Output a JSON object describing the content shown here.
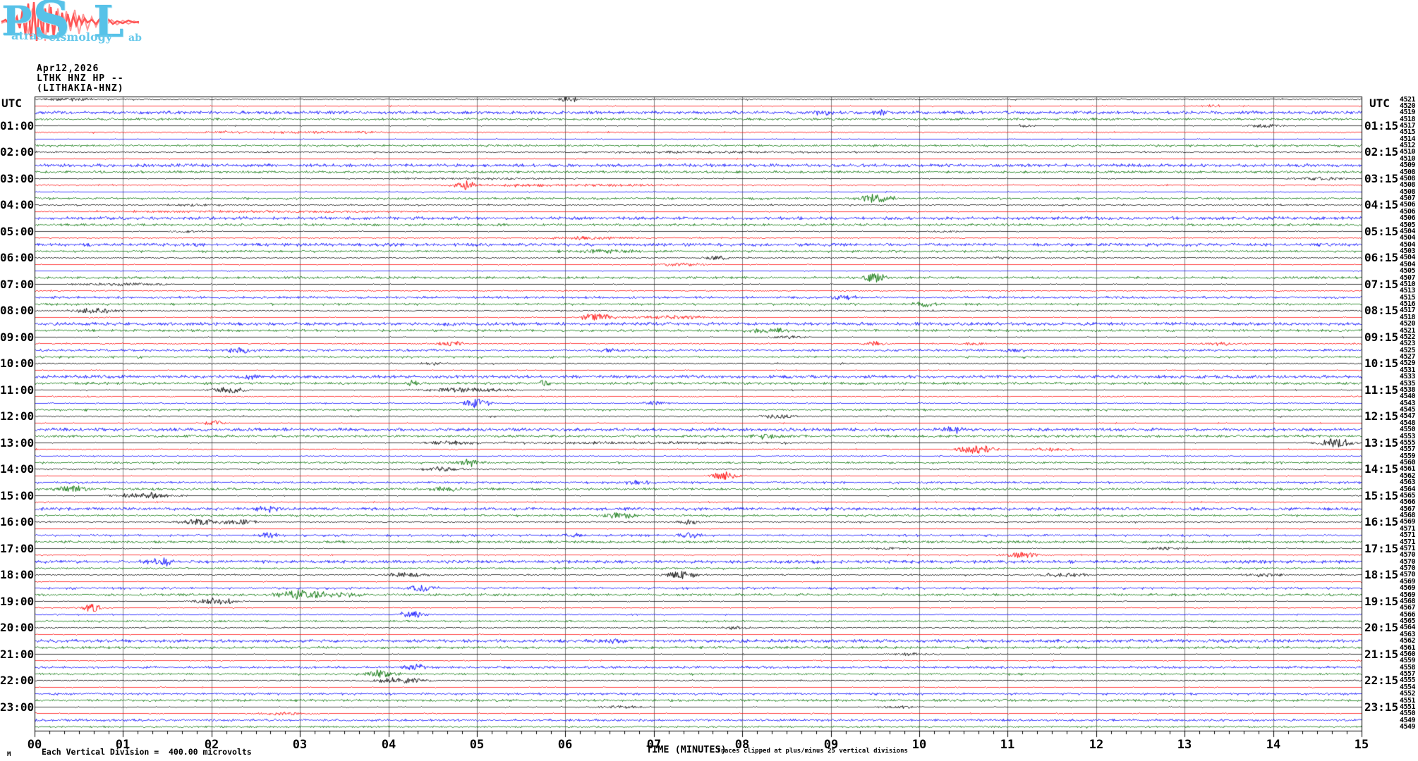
{
  "logo": {
    "p": "P",
    "s": "S",
    "l": "L",
    "word1": "atras",
    "word2": "eismology",
    "word3": "ab",
    "letter_color": "#57c2e8",
    "wave_color": "#ff5555"
  },
  "header": {
    "date": "Apr12,2026",
    "station": "LTHK HNZ HP --",
    "station_name": "(LITHAKIA-HNZ)"
  },
  "axis": {
    "utc_left": "UTC",
    "utc_right": "UTC",
    "x_tick_labels": [
      "00",
      "01",
      "02",
      "03",
      "04",
      "05",
      "06",
      "07",
      "08",
      "09",
      "10",
      "11",
      "12",
      "13",
      "14",
      "15"
    ]
  },
  "footer": {
    "marker": "M",
    "division_note": "Each Vertical Division =  400.00 microvolts",
    "x_axis_title": "TIME (MINUTES)",
    "clip_note": "Traces clipped at plus/minus 25 vertical divisions"
  },
  "left_time_labels": [
    "01:00",
    "02:00",
    "03:00",
    "04:00",
    "05:00",
    "06:00",
    "07:00",
    "08:00",
    "09:00",
    "10:00",
    "11:00",
    "12:00",
    "13:00",
    "14:00",
    "15:00",
    "16:00",
    "17:00",
    "18:00",
    "19:00",
    "20:00",
    "21:00",
    "22:00",
    "23:00"
  ],
  "right_time_labels": [
    "01:15",
    "02:15",
    "03:15",
    "04:15",
    "05:15",
    "06:15",
    "07:15",
    "08:15",
    "09:15",
    "10:15",
    "11:15",
    "12:15",
    "13:15",
    "14:15",
    "15:15",
    "16:15",
    "17:15",
    "18:15",
    "19:15",
    "20:15",
    "21:15",
    "22:15",
    "23:15"
  ],
  "chart_data": {
    "type": "line",
    "subtype": "helicorder-seismogram",
    "title": "LTHK HNZ HP -- (LITHAKIA-HNZ) Apr12,2026",
    "xlabel": "TIME (MINUTES)",
    "x_range": [
      0,
      15
    ],
    "minutes_per_row": 15,
    "rows_per_hour": 4,
    "hours": 24,
    "vertical_division_microvolts": 400.0,
    "clip_divisions": 25,
    "grid": true,
    "grid_color": "#808080",
    "row_colors_cycle": [
      "#000000",
      "#ff0000",
      "#0000ff",
      "#007000"
    ],
    "row_fields": {
      "v": "right-column mean value",
      "n": "background noise class q/m/d/t",
      "e": "bursts [minute, amplitude_px, width_min]"
    },
    "rows": [
      {
        "v": 4521,
        "n": "q",
        "e": [
          [
            0.4,
            1.2,
            0.5
          ],
          [
            6.05,
            2.5,
            0.12
          ]
        ]
      },
      {
        "v": 4520,
        "n": "q",
        "e": [
          [
            13.3,
            1.2,
            0.1
          ]
        ]
      },
      {
        "v": 4519,
        "n": "t",
        "e": [
          [
            8.9,
            2.2,
            0.15
          ],
          [
            9.6,
            2.2,
            0.15
          ]
        ]
      },
      {
        "v": 4518,
        "n": "d"
      },
      {
        "v": 4517,
        "n": "q",
        "e": [
          [
            11.2,
            1.0,
            0.1
          ],
          [
            13.9,
            1.5,
            0.2
          ]
        ]
      },
      {
        "v": 4515,
        "n": "q",
        "e": [
          [
            3.0,
            0.8,
            2.0
          ]
        ]
      },
      {
        "v": 4514,
        "n": "q"
      },
      {
        "v": 4512,
        "n": "d"
      },
      {
        "v": 4510,
        "n": "q",
        "e": [
          [
            7.5,
            0.8,
            2.0
          ]
        ]
      },
      {
        "v": 4510,
        "n": "q"
      },
      {
        "v": 4509,
        "n": "t"
      },
      {
        "v": 4508,
        "n": "d"
      },
      {
        "v": 4508,
        "n": "q",
        "e": [
          [
            5.0,
            0.8,
            1.0
          ],
          [
            14.5,
            1.5,
            0.3
          ]
        ]
      },
      {
        "v": 4508,
        "n": "q",
        "e": [
          [
            4.87,
            4.0,
            0.12
          ],
          [
            6.0,
            1.0,
            1.5
          ]
        ]
      },
      {
        "v": 4508,
        "n": "q"
      },
      {
        "v": 4507,
        "n": "d",
        "e": [
          [
            9.5,
            3.5,
            0.2
          ]
        ]
      },
      {
        "v": 4506,
        "n": "q",
        "e": [
          [
            1.8,
            1.0,
            0.4
          ]
        ]
      },
      {
        "v": 4506,
        "n": "q",
        "e": [
          [
            2.5,
            0.8,
            2.0
          ]
        ]
      },
      {
        "v": 4506,
        "n": "t"
      },
      {
        "v": 4505,
        "n": "d"
      },
      {
        "v": 4504,
        "n": "q",
        "e": [
          [
            1.7,
            1.0,
            0.2
          ],
          [
            10.3,
            1.0,
            0.2
          ]
        ]
      },
      {
        "v": 4504,
        "n": "q",
        "e": [
          [
            6.3,
            1.5,
            0.5
          ]
        ]
      },
      {
        "v": 4504,
        "n": "t"
      },
      {
        "v": 4503,
        "n": "d",
        "e": [
          [
            6.5,
            1.5,
            0.4
          ]
        ]
      },
      {
        "v": 4504,
        "n": "q",
        "e": [
          [
            7.7,
            2.0,
            0.15
          ],
          [
            10.9,
            1.2,
            0.15
          ]
        ]
      },
      {
        "v": 4504,
        "n": "q",
        "e": [
          [
            7.3,
            1.5,
            0.3
          ]
        ]
      },
      {
        "v": 4505,
        "n": "q"
      },
      {
        "v": 4507,
        "n": "d",
        "e": [
          [
            9.5,
            4.0,
            0.15
          ]
        ]
      },
      {
        "v": 4510,
        "n": "q",
        "e": [
          [
            1.0,
            1.2,
            0.5
          ]
        ]
      },
      {
        "v": 4513,
        "n": "q"
      },
      {
        "v": 4515,
        "n": "m",
        "e": [
          [
            9.15,
            2.0,
            0.15
          ]
        ]
      },
      {
        "v": 4516,
        "n": "d",
        "e": [
          [
            10.05,
            2.5,
            0.15
          ]
        ]
      },
      {
        "v": 4517,
        "n": "q",
        "e": [
          [
            0.7,
            2.5,
            0.25
          ]
        ]
      },
      {
        "v": 4518,
        "n": "q",
        "e": [
          [
            6.35,
            3.5,
            0.2
          ],
          [
            7.2,
            1.5,
            0.5
          ]
        ]
      },
      {
        "v": 4520,
        "n": "t",
        "e": [
          [
            4.7,
            1.5,
            0.15
          ]
        ]
      },
      {
        "v": 4521,
        "n": "d",
        "e": [
          [
            8.3,
            1.8,
            0.3
          ]
        ]
      },
      {
        "v": 4522,
        "n": "q",
        "e": [
          [
            8.5,
            1.2,
            0.2
          ]
        ]
      },
      {
        "v": 4523,
        "n": "q",
        "e": [
          [
            4.7,
            2.5,
            0.15
          ],
          [
            9.5,
            2.0,
            0.15
          ],
          [
            10.6,
            1.5,
            0.15
          ],
          [
            13.4,
            1.5,
            0.2
          ]
        ]
      },
      {
        "v": 4525,
        "n": "m",
        "e": [
          [
            2.3,
            2.5,
            0.15
          ],
          [
            6.5,
            1.5,
            0.2
          ],
          [
            11.1,
            1.5,
            0.2
          ]
        ]
      },
      {
        "v": 4527,
        "n": "d"
      },
      {
        "v": 4529,
        "n": "q",
        "e": [
          [
            4.5,
            1.0,
            0.2
          ]
        ]
      },
      {
        "v": 4531,
        "n": "q"
      },
      {
        "v": 4533,
        "n": "t",
        "e": [
          [
            2.4,
            1.5,
            0.2
          ]
        ]
      },
      {
        "v": 4535,
        "n": "d",
        "e": [
          [
            4.25,
            3.0,
            0.08
          ],
          [
            5.75,
            3.0,
            0.08
          ]
        ]
      },
      {
        "v": 4538,
        "n": "q",
        "e": [
          [
            2.2,
            3.0,
            0.2
          ],
          [
            4.85,
            2.0,
            0.5
          ]
        ]
      },
      {
        "v": 4540,
        "n": "q"
      },
      {
        "v": 4543,
        "n": "q",
        "e": [
          [
            5.0,
            4.0,
            0.15
          ],
          [
            7.0,
            2.0,
            0.15
          ]
        ]
      },
      {
        "v": 4545,
        "n": "d"
      },
      {
        "v": 4547,
        "n": "q",
        "e": [
          [
            8.4,
            2.0,
            0.2
          ]
        ]
      },
      {
        "v": 4548,
        "n": "q",
        "e": [
          [
            2.03,
            3.0,
            0.1
          ]
        ]
      },
      {
        "v": 4550,
        "n": "t",
        "e": [
          [
            10.4,
            2.5,
            0.15
          ]
        ]
      },
      {
        "v": 4553,
        "n": "d",
        "e": [
          [
            8.3,
            2.0,
            0.2
          ]
        ]
      },
      {
        "v": 4555,
        "n": "q",
        "e": [
          [
            4.7,
            2.0,
            0.3
          ],
          [
            7.0,
            1.0,
            2.0
          ],
          [
            14.7,
            4.0,
            0.2
          ]
        ]
      },
      {
        "v": 4557,
        "n": "q",
        "e": [
          [
            10.65,
            4.0,
            0.2
          ],
          [
            11.5,
            1.5,
            0.3
          ]
        ]
      },
      {
        "v": 4559,
        "n": "q"
      },
      {
        "v": 4560,
        "n": "d",
        "e": [
          [
            4.9,
            3.0,
            0.15
          ]
        ]
      },
      {
        "v": 4561,
        "n": "q",
        "e": [
          [
            4.6,
            2.0,
            0.25
          ]
        ]
      },
      {
        "v": 4562,
        "n": "q",
        "e": [
          [
            7.8,
            3.5,
            0.15
          ]
        ]
      },
      {
        "v": 4563,
        "n": "m",
        "e": [
          [
            6.8,
            1.5,
            0.2
          ]
        ]
      },
      {
        "v": 4564,
        "n": "d",
        "e": [
          [
            0.45,
            3.0,
            0.2
          ],
          [
            4.65,
            2.0,
            0.2
          ]
        ]
      },
      {
        "v": 4565,
        "n": "q",
        "e": [
          [
            1.25,
            2.5,
            0.35
          ]
        ]
      },
      {
        "v": 4566,
        "n": "q"
      },
      {
        "v": 4567,
        "n": "t",
        "e": [
          [
            2.65,
            2.5,
            0.15
          ]
        ]
      },
      {
        "v": 4568,
        "n": "d",
        "e": [
          [
            6.6,
            2.5,
            0.2
          ]
        ]
      },
      {
        "v": 4569,
        "n": "q",
        "e": [
          [
            1.85,
            3.0,
            0.2
          ],
          [
            2.3,
            2.5,
            0.2
          ],
          [
            7.4,
            2.0,
            0.15
          ]
        ]
      },
      {
        "v": 4571,
        "n": "q"
      },
      {
        "v": 4571,
        "n": "m",
        "e": [
          [
            2.65,
            3.0,
            0.12
          ],
          [
            6.1,
            1.5,
            0.15
          ],
          [
            7.4,
            2.5,
            0.15
          ]
        ]
      },
      {
        "v": 4571,
        "n": "d"
      },
      {
        "v": 4571,
        "n": "q",
        "e": [
          [
            9.6,
            1.2,
            0.2
          ],
          [
            12.8,
            1.2,
            0.2
          ]
        ]
      },
      {
        "v": 4570,
        "n": "q",
        "e": [
          [
            11.15,
            2.5,
            0.2
          ]
        ]
      },
      {
        "v": 4570,
        "n": "t",
        "e": [
          [
            1.45,
            3.0,
            0.15
          ]
        ]
      },
      {
        "v": 4570,
        "n": "d"
      },
      {
        "v": 4570,
        "n": "q",
        "e": [
          [
            4.2,
            2.0,
            0.3
          ],
          [
            7.3,
            3.5,
            0.2
          ],
          [
            11.6,
            2.0,
            0.3
          ],
          [
            13.9,
            1.5,
            0.3
          ]
        ]
      },
      {
        "v": 4569,
        "n": "q"
      },
      {
        "v": 4569,
        "n": "m",
        "e": [
          [
            4.35,
            3.0,
            0.15
          ]
        ]
      },
      {
        "v": 4569,
        "n": "d",
        "e": [
          [
            3.0,
            4.0,
            0.3
          ],
          [
            3.5,
            2.0,
            0.3
          ]
        ]
      },
      {
        "v": 4568,
        "n": "q",
        "e": [
          [
            2.05,
            3.0,
            0.25
          ]
        ]
      },
      {
        "v": 4567,
        "n": "q",
        "e": [
          [
            0.65,
            3.5,
            0.12
          ]
        ]
      },
      {
        "v": 4566,
        "n": "q",
        "e": [
          [
            4.25,
            3.5,
            0.15
          ]
        ]
      },
      {
        "v": 4565,
        "n": "d"
      },
      {
        "v": 4564,
        "n": "q",
        "e": [
          [
            7.9,
            1.2,
            0.2
          ]
        ]
      },
      {
        "v": 4563,
        "n": "q"
      },
      {
        "v": 4562,
        "n": "t",
        "e": [
          [
            6.55,
            2.5,
            0.15
          ]
        ]
      },
      {
        "v": 4561,
        "n": "d"
      },
      {
        "v": 4560,
        "n": "q",
        "e": [
          [
            9.9,
            1.0,
            0.3
          ]
        ]
      },
      {
        "v": 4559,
        "n": "q"
      },
      {
        "v": 4558,
        "n": "m",
        "e": [
          [
            4.3,
            3.0,
            0.15
          ]
        ]
      },
      {
        "v": 4557,
        "n": "d",
        "e": [
          [
            3.9,
            3.5,
            0.15
          ]
        ]
      },
      {
        "v": 4555,
        "n": "q",
        "e": [
          [
            4.1,
            3.0,
            0.3
          ]
        ]
      },
      {
        "v": 4554,
        "n": "q"
      },
      {
        "v": 4552,
        "n": "m"
      },
      {
        "v": 4551,
        "n": "d"
      },
      {
        "v": 4551,
        "n": "q",
        "e": [
          [
            6.6,
            1.2,
            0.3
          ],
          [
            9.8,
            1.0,
            0.3
          ]
        ]
      },
      {
        "v": 4550,
        "n": "q",
        "e": [
          [
            2.8,
            1.2,
            0.3
          ]
        ]
      },
      {
        "v": 4549,
        "n": "m"
      },
      {
        "v": 4549,
        "n": "d"
      }
    ]
  }
}
